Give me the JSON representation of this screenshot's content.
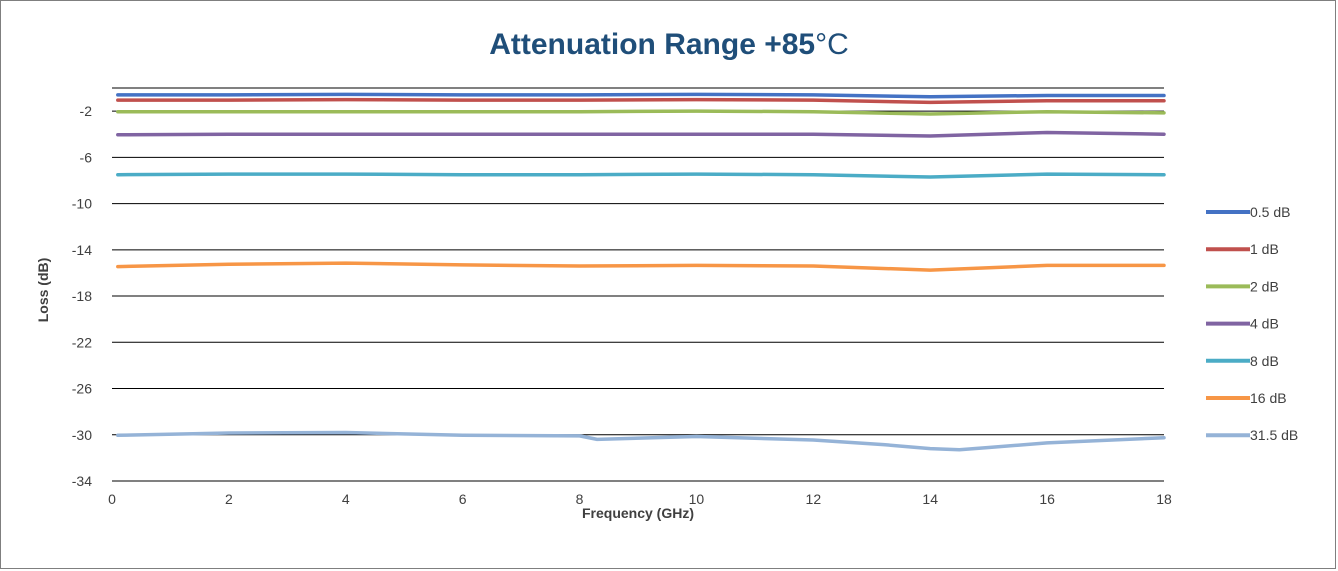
{
  "chart_data": {
    "type": "line",
    "title": "Attenuation Range +85",
    "title_unit": "°C",
    "xlabel": "Frequency (GHz)",
    "ylabel": "Loss (dB)",
    "xlim": [
      0,
      18
    ],
    "ylim": [
      -34,
      0
    ],
    "xticks": [
      0,
      2,
      4,
      6,
      8,
      10,
      12,
      14,
      16,
      18
    ],
    "yticks": [
      -2,
      -6,
      -10,
      -14,
      -18,
      -22,
      -26,
      -30,
      -34
    ],
    "grid": "horizontal",
    "legend": "right",
    "series": [
      {
        "name": "0.5 dB",
        "color": "#4472c4",
        "x": [
          0.1,
          2,
          4,
          6,
          8,
          10,
          12,
          14,
          16,
          18
        ],
        "y": [
          -0.6,
          -0.6,
          -0.55,
          -0.6,
          -0.6,
          -0.55,
          -0.6,
          -0.75,
          -0.65,
          -0.65
        ]
      },
      {
        "name": "1 dB",
        "color": "#c0504d",
        "x": [
          0.1,
          2,
          4,
          6,
          8,
          10,
          12,
          14,
          16,
          18
        ],
        "y": [
          -1.05,
          -1.05,
          -1.0,
          -1.05,
          -1.05,
          -1.0,
          -1.05,
          -1.25,
          -1.1,
          -1.1
        ]
      },
      {
        "name": "2 dB",
        "color": "#9bbb59",
        "x": [
          0.1,
          2,
          4,
          6,
          8,
          10,
          12,
          14,
          16,
          18
        ],
        "y": [
          -2.05,
          -2.05,
          -2.05,
          -2.05,
          -2.05,
          -2.0,
          -2.05,
          -2.25,
          -2.05,
          -2.15
        ]
      },
      {
        "name": "4 dB",
        "color": "#8064a2",
        "x": [
          0.1,
          2,
          4,
          6,
          8,
          10,
          12,
          14,
          16,
          18
        ],
        "y": [
          -4.05,
          -4.0,
          -4.0,
          -4.0,
          -4.0,
          -4.0,
          -4.0,
          -4.15,
          -3.85,
          -4.0
        ]
      },
      {
        "name": "8 dB",
        "color": "#4bacc6",
        "x": [
          0.1,
          2,
          4,
          6,
          8,
          10,
          12,
          14,
          16,
          18
        ],
        "y": [
          -7.5,
          -7.45,
          -7.45,
          -7.5,
          -7.5,
          -7.45,
          -7.5,
          -7.7,
          -7.45,
          -7.5
        ]
      },
      {
        "name": "16 dB",
        "color": "#f79646",
        "x": [
          0.1,
          2,
          4,
          6,
          8,
          10,
          12,
          14,
          16,
          18
        ],
        "y": [
          -15.45,
          -15.25,
          -15.15,
          -15.3,
          -15.4,
          -15.35,
          -15.4,
          -15.75,
          -15.35,
          -15.35
        ]
      },
      {
        "name": "31.5 dB",
        "color": "#95b3d7",
        "x": [
          0.1,
          2,
          4,
          6,
          8,
          8.3,
          10,
          12,
          13.2,
          14,
          14.5,
          15,
          16,
          18
        ],
        "y": [
          -30.05,
          -29.85,
          -29.8,
          -30.05,
          -30.1,
          -30.4,
          -30.15,
          -30.45,
          -30.85,
          -31.2,
          -31.3,
          -31.1,
          -30.7,
          -30.25
        ]
      }
    ]
  }
}
